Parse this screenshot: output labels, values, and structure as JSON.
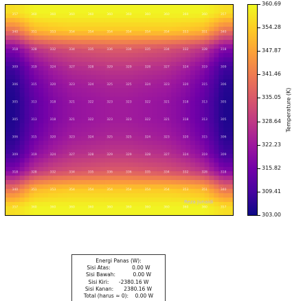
{
  "chart_data": {
    "type": "heatmap",
    "title": "",
    "xlabel": "",
    "ylabel": "",
    "colormap": "plasma",
    "colorbar": {
      "label": "Temperature (K)",
      "min": 303.0,
      "max": 360.69,
      "ticks": [
        "360.69",
        "354.28",
        "347.87",
        "341.46",
        "335.05",
        "328.64",
        "322.23",
        "315.82",
        "309.41",
        "303.00"
      ]
    },
    "rows": 12,
    "cols": 12,
    "values": [
      [
        357,
        360,
        360,
        360,
        360,
        360,
        360,
        360,
        360,
        360,
        360,
        357
      ],
      [
        340,
        351,
        353,
        354,
        354,
        354,
        354,
        354,
        354,
        353,
        351,
        340
      ],
      [
        318,
        328,
        332,
        334,
        335,
        336,
        336,
        335,
        334,
        332,
        328,
        318
      ],
      [
        309,
        319,
        324,
        327,
        328,
        329,
        329,
        328,
        327,
        324,
        319,
        309
      ],
      [
        306,
        315,
        320,
        323,
        324,
        325,
        325,
        324,
        323,
        320,
        315,
        306
      ],
      [
        305,
        313,
        318,
        321,
        322,
        323,
        323,
        322,
        321,
        318,
        313,
        305
      ],
      [
        305,
        313,
        318,
        321,
        322,
        323,
        323,
        322,
        321,
        318,
        313,
        305
      ],
      [
        306,
        315,
        320,
        323,
        324,
        325,
        325,
        324,
        323,
        320,
        315,
        306
      ],
      [
        309,
        319,
        324,
        327,
        328,
        329,
        329,
        328,
        327,
        324,
        319,
        309
      ],
      [
        318,
        328,
        332,
        334,
        335,
        336,
        336,
        335,
        334,
        332,
        328,
        318
      ],
      [
        340,
        351,
        353,
        354,
        354,
        354,
        354,
        354,
        354,
        353,
        351,
        340
      ],
      [
        357,
        360,
        360,
        360,
        360,
        360,
        360,
        360,
        360,
        360,
        360,
        357
      ]
    ]
  },
  "watermark": "Reza Junaidi",
  "legend": {
    "title": "Energi Panas (W):",
    "rows": [
      {
        "label": "Sisi Atas:",
        "value": "0.00 W"
      },
      {
        "label": "Sisi Bawah:",
        "value": "0.00 W"
      },
      {
        "label": "Sisi Kiri:",
        "value": "-2380.16 W"
      },
      {
        "label": "Sisi Kanan:",
        "value": "2380.16 W"
      },
      {
        "label": "Total (harus ≈ 0):",
        "value": "0.00 W"
      }
    ]
  }
}
